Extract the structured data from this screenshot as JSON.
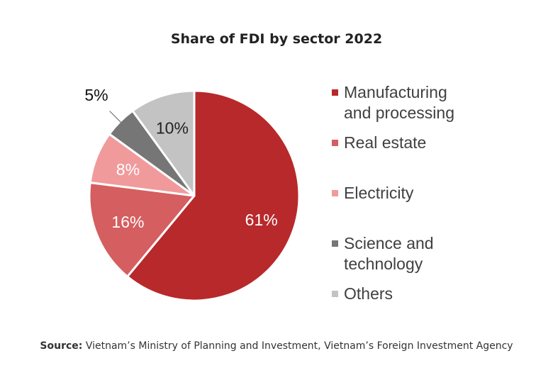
{
  "chart_data": {
    "type": "pie",
    "title": "Share of FDI by sector 2022",
    "slices": [
      {
        "name": "Manufacturing and processing",
        "value": 61,
        "label": "61%",
        "color": "#b8292b",
        "label_color": "#ffffff"
      },
      {
        "name": "Real estate",
        "value": 16,
        "label": "16%",
        "color": "#d55e60",
        "label_color": "#ffffff"
      },
      {
        "name": "Electricity",
        "value": 8,
        "label": "8%",
        "color": "#f09a9c",
        "label_color": "#ffffff"
      },
      {
        "name": "Science and technology",
        "value": 5,
        "label": "5%",
        "color": "#767676",
        "label_color": "#111111"
      },
      {
        "name": "Others",
        "value": 10,
        "label": "10%",
        "color": "#c3c3c3",
        "label_color": "#222222"
      }
    ],
    "legend_position": "right"
  },
  "legend": [
    {
      "label": "Manufacturing and processing",
      "color": "#b8292b"
    },
    {
      "label": "Real estate",
      "color": "#d55e60"
    },
    {
      "label": "Electricity",
      "color": "#f09a9c"
    },
    {
      "label": "Science and technology",
      "color": "#767676"
    },
    {
      "label": "Others",
      "color": "#c3c3c3"
    }
  ],
  "source": {
    "prefix": "Source:",
    "text": " Vietnam’s Ministry of Planning and Investment, Vietnam’s Foreign Investment Agency"
  }
}
